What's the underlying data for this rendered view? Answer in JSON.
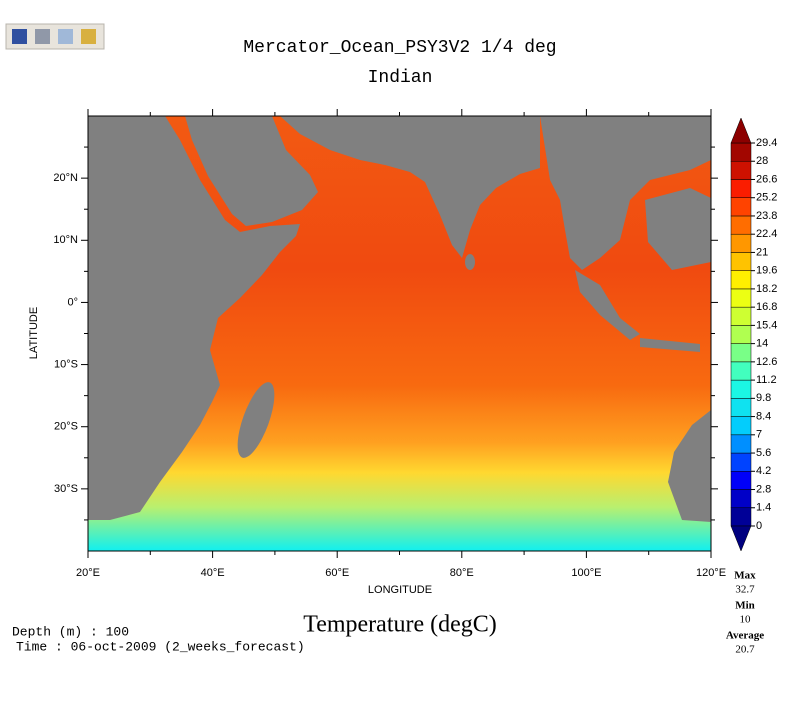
{
  "chart_data": {
    "type": "map",
    "title": "Mercator_Ocean_PSY3V2 1/4 deg",
    "subtitle": "Indian",
    "xlabel": "LONGITUDE",
    "ylabel": "LATITUDE",
    "xlim": [
      20,
      120
    ],
    "ylim": [
      -40,
      30
    ],
    "xticks": [
      {
        "value": 20,
        "label": "20°E"
      },
      {
        "value": 40,
        "label": "40°E"
      },
      {
        "value": 60,
        "label": "60°E"
      },
      {
        "value": 80,
        "label": "80°E"
      },
      {
        "value": 100,
        "label": "100°E"
      },
      {
        "value": 120,
        "label": "120°E"
      }
    ],
    "xminor": [
      30,
      50,
      70,
      90,
      110
    ],
    "yticks": [
      {
        "value": 20,
        "label": "20°N"
      },
      {
        "value": 10,
        "label": "10°N"
      },
      {
        "value": 0,
        "label": "0°"
      },
      {
        "value": -10,
        "label": "10°S"
      },
      {
        "value": -20,
        "label": "20°S"
      },
      {
        "value": -30,
        "label": "30°S"
      }
    ],
    "yminor": [
      25,
      15,
      5,
      -5,
      -15,
      -25,
      -35
    ],
    "variable": "Temperature (degC)",
    "colorbar": {
      "ticks": [
        0,
        1.4,
        2.8,
        4.2,
        5.6,
        7,
        8.4,
        9.8,
        11.2,
        12.6,
        14,
        15.4,
        16.8,
        18.2,
        19.6,
        21,
        22.4,
        23.8,
        25.2,
        26.6,
        28,
        29.4
      ],
      "colormap": [
        "#00007f",
        "#0000ff",
        "#00c8ff",
        "#20ffe0",
        "#b0ff50",
        "#ffff00",
        "#ff8c00",
        "#ff1e00",
        "#8c0000"
      ]
    },
    "stats": [
      {
        "label": "Max",
        "value": 32.7
      },
      {
        "label": "Min",
        "value": 10
      },
      {
        "label": "Average",
        "value": 20.7
      }
    ],
    "depth": "Depth (m) : 100",
    "time": "Time : 06-oct-2009 (2_weeks_forecast)"
  }
}
